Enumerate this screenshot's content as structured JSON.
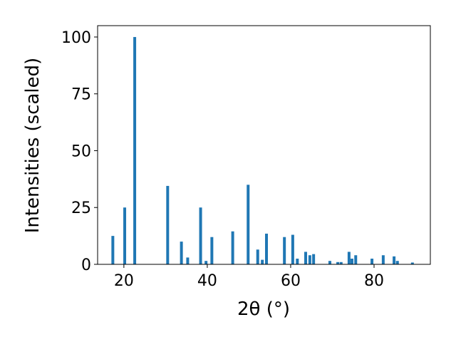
{
  "chart_data": {
    "type": "bar",
    "x_label": "2θ (°)",
    "y_label": "Intensities (scaled)",
    "x": [
      17.35,
      20.2,
      22.6,
      30.5,
      33.8,
      35.3,
      38.4,
      39.7,
      41.1,
      46.1,
      49.8,
      52.1,
      53.2,
      54.2,
      58.5,
      60.5,
      61.6,
      63.6,
      64.6,
      65.5,
      69.4,
      71.3,
      72.1,
      74.0,
      74.7,
      75.6,
      79.5,
      82.2,
      84.8,
      85.6,
      89.2
    ],
    "values": [
      12.5,
      25,
      100,
      34.5,
      10,
      3,
      25,
      1.5,
      12,
      14.5,
      35,
      6.5,
      2,
      13.5,
      12,
      13,
      2.5,
      5.5,
      4,
      4.5,
      1.5,
      1,
      1,
      5.5,
      2.5,
      4,
      2.5,
      4,
      3.5,
      1.5,
      0.8
    ],
    "color": "#1f77b4",
    "xlim": [
      13.7,
      93.5
    ],
    "xticks": [
      20,
      40,
      60,
      80
    ],
    "ylim": [
      0,
      105
    ],
    "yticks": [
      0,
      25,
      50,
      75,
      100
    ]
  }
}
